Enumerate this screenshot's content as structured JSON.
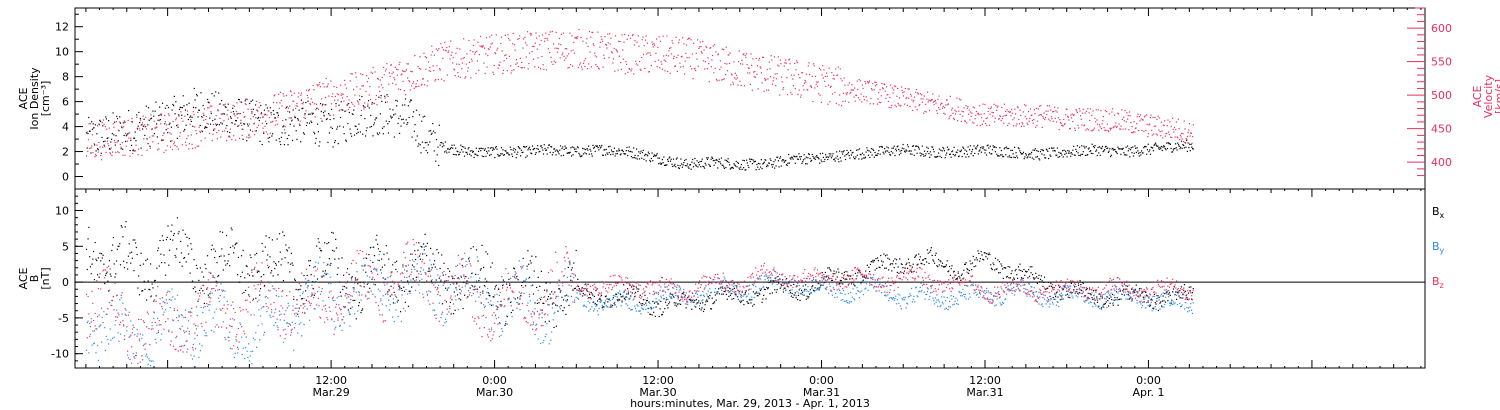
{
  "chart_data": [
    {
      "type": "scatter",
      "panel": "top",
      "ylabel_left": [
        "ACE",
        "Ion Density",
        "[cm⁻³]"
      ],
      "ylabel_right": [
        "ACE",
        "Velocity",
        "[km/s]"
      ],
      "left_ylim": [
        -1,
        13.5
      ],
      "left_yticks": [
        "0",
        "2",
        "4",
        "6",
        "8",
        "10",
        "12"
      ],
      "right_ylim": [
        360,
        630
      ],
      "right_yticks": [
        "400",
        "450",
        "500",
        "550",
        "600"
      ],
      "x_unit": "hours since Mar. 29, 2013 00:00",
      "xlim": [
        -6.8,
        92.3
      ],
      "data_end_x": 75.3,
      "series": [
        {
          "name": "Ion Density",
          "axis": "left",
          "color": "#000000",
          "points": [
            [
              -6,
              3.0
            ],
            [
              -4,
              3.5
            ],
            [
              -2,
              4.0
            ],
            [
              0,
              4.5
            ],
            [
              2,
              5.5
            ],
            [
              4,
              5.0
            ],
            [
              6,
              4.5
            ],
            [
              8,
              4.0
            ],
            [
              10,
              4.5
            ],
            [
              12,
              4.0
            ],
            [
              14,
              5.0
            ],
            [
              16,
              5.0
            ],
            [
              18,
              4.5
            ],
            [
              19,
              3.0
            ],
            [
              20,
              2.5
            ],
            [
              22,
              2.0
            ],
            [
              24,
              2.0
            ],
            [
              26,
              2.0
            ],
            [
              28,
              2.2
            ],
            [
              30,
              2.0
            ],
            [
              32,
              2.2
            ],
            [
              34,
              2.0
            ],
            [
              36,
              1.5
            ],
            [
              38,
              1.0
            ],
            [
              40,
              1.2
            ],
            [
              42,
              1.0
            ],
            [
              44,
              1.0
            ],
            [
              46,
              1.5
            ],
            [
              48,
              1.5
            ],
            [
              50,
              1.8
            ],
            [
              52,
              2.0
            ],
            [
              54,
              2.2
            ],
            [
              56,
              2.0
            ],
            [
              58,
              2.0
            ],
            [
              60,
              2.2
            ],
            [
              62,
              2.0
            ],
            [
              64,
              1.8
            ],
            [
              66,
              2.0
            ],
            [
              68,
              2.2
            ],
            [
              70,
              2.0
            ],
            [
              72,
              2.2
            ],
            [
              74,
              2.5
            ],
            [
              75,
              2.5
            ]
          ]
        },
        {
          "name": "Velocity",
          "axis": "right",
          "color": "#e8305c",
          "points": [
            [
              -6,
              430
            ],
            [
              -4,
              438
            ],
            [
              -2,
              440
            ],
            [
              0,
              445
            ],
            [
              2,
              452
            ],
            [
              4,
              460
            ],
            [
              6,
              466
            ],
            [
              8,
              475
            ],
            [
              10,
              487
            ],
            [
              12,
              500
            ],
            [
              14,
              505
            ],
            [
              16,
              520
            ],
            [
              18,
              535
            ],
            [
              20,
              550
            ],
            [
              22,
              556
            ],
            [
              24,
              562
            ],
            [
              26,
              565
            ],
            [
              28,
              568
            ],
            [
              30,
              570
            ],
            [
              32,
              565
            ],
            [
              34,
              562
            ],
            [
              36,
              560
            ],
            [
              38,
              558
            ],
            [
              40,
              548
            ],
            [
              42,
              540
            ],
            [
              44,
              532
            ],
            [
              46,
              525
            ],
            [
              48,
              518
            ],
            [
              50,
              510
            ],
            [
              52,
              504
            ],
            [
              54,
              495
            ],
            [
              56,
              488
            ],
            [
              58,
              480
            ],
            [
              60,
              470
            ],
            [
              62,
              470
            ],
            [
              64,
              470
            ],
            [
              66,
              465
            ],
            [
              68,
              465
            ],
            [
              70,
              462
            ],
            [
              72,
              455
            ],
            [
              74,
              450
            ],
            [
              75,
              445
            ]
          ]
        }
      ]
    },
    {
      "type": "scatter",
      "panel": "bottom",
      "ylabel_left": [
        "ACE",
        "B",
        "[nT]"
      ],
      "ylim": [
        -12,
        13
      ],
      "yticks": [
        "-10",
        "-5",
        "0",
        "5",
        "10"
      ],
      "x_unit": "hours since Mar. 29, 2013 00:00",
      "xlim": [
        -6.8,
        92.3
      ],
      "data_end_x": 75.3,
      "legend_placement": "right",
      "series": [
        {
          "name": "x",
          "label_base": "B",
          "color": "#000000",
          "points": [
            [
              -6,
              5
            ],
            [
              -4,
              3
            ],
            [
              -2,
              2
            ],
            [
              0,
              4
            ],
            [
              2,
              3
            ],
            [
              4,
              2
            ],
            [
              6,
              3
            ],
            [
              8,
              2
            ],
            [
              10,
              1
            ],
            [
              12,
              2
            ],
            [
              14,
              0
            ],
            [
              16,
              1
            ],
            [
              18,
              2
            ],
            [
              20,
              1
            ],
            [
              22,
              0
            ],
            [
              24,
              0
            ],
            [
              26,
              -1
            ],
            [
              28,
              -1
            ],
            [
              30,
              -1
            ],
            [
              32,
              -2
            ],
            [
              34,
              -2
            ],
            [
              36,
              -3
            ],
            [
              38,
              -3
            ],
            [
              40,
              -2
            ],
            [
              42,
              -2
            ],
            [
              44,
              -1
            ],
            [
              46,
              -1
            ],
            [
              48,
              0
            ],
            [
              50,
              1
            ],
            [
              52,
              2
            ],
            [
              54,
              3
            ],
            [
              56,
              3
            ],
            [
              58,
              2
            ],
            [
              60,
              3
            ],
            [
              62,
              2
            ],
            [
              64,
              0
            ],
            [
              66,
              -1
            ],
            [
              68,
              -2
            ],
            [
              70,
              -2
            ],
            [
              72,
              -2
            ],
            [
              74,
              -2
            ],
            [
              75,
              -2
            ]
          ]
        },
        {
          "name": "y",
          "label_base": "B",
          "color": "#2a8ae8",
          "points": [
            [
              -6,
              -5
            ],
            [
              -4,
              -7
            ],
            [
              -2,
              -8
            ],
            [
              0,
              -6
            ],
            [
              2,
              -5
            ],
            [
              4,
              -6
            ],
            [
              6,
              -7
            ],
            [
              8,
              -5
            ],
            [
              10,
              -3
            ],
            [
              12,
              -2
            ],
            [
              14,
              -1
            ],
            [
              16,
              0
            ],
            [
              18,
              -1
            ],
            [
              20,
              0
            ],
            [
              22,
              -1
            ],
            [
              24,
              -2
            ],
            [
              26,
              -3
            ],
            [
              28,
              -3
            ],
            [
              30,
              -2
            ],
            [
              32,
              -3
            ],
            [
              34,
              -3
            ],
            [
              36,
              -2
            ],
            [
              38,
              -2
            ],
            [
              40,
              -1
            ],
            [
              42,
              -1
            ],
            [
              44,
              0
            ],
            [
              46,
              0
            ],
            [
              48,
              -1
            ],
            [
              50,
              -1
            ],
            [
              52,
              -1
            ],
            [
              54,
              -2
            ],
            [
              56,
              -2
            ],
            [
              58,
              -2
            ],
            [
              60,
              -2
            ],
            [
              62,
              -1
            ],
            [
              64,
              -2
            ],
            [
              66,
              -2
            ],
            [
              68,
              -2
            ],
            [
              70,
              -2
            ],
            [
              72,
              -2
            ],
            [
              74,
              -3
            ],
            [
              75,
              -3
            ]
          ]
        },
        {
          "name": "z",
          "label_base": "B",
          "color": "#e8305c",
          "points": [
            [
              -6,
              -2
            ],
            [
              -4,
              -4
            ],
            [
              -2,
              -6
            ],
            [
              0,
              -6
            ],
            [
              2,
              -5
            ],
            [
              4,
              -4
            ],
            [
              6,
              -3
            ],
            [
              8,
              -2
            ],
            [
              10,
              -3
            ],
            [
              12,
              -2
            ],
            [
              14,
              -1
            ],
            [
              16,
              0
            ],
            [
              18,
              1
            ],
            [
              20,
              0
            ],
            [
              22,
              -2
            ],
            [
              24,
              -3
            ],
            [
              26,
              -2
            ],
            [
              28,
              -1
            ],
            [
              30,
              0
            ],
            [
              32,
              -1
            ],
            [
              34,
              0
            ],
            [
              36,
              -1
            ],
            [
              38,
              -1
            ],
            [
              40,
              0
            ],
            [
              42,
              0
            ],
            [
              44,
              1
            ],
            [
              46,
              1
            ],
            [
              48,
              0
            ],
            [
              50,
              1
            ],
            [
              52,
              0
            ],
            [
              54,
              1
            ],
            [
              56,
              0
            ],
            [
              58,
              0
            ],
            [
              60,
              -1
            ],
            [
              62,
              -1
            ],
            [
              64,
              -1
            ],
            [
              66,
              -1
            ],
            [
              68,
              -1
            ],
            [
              70,
              -1
            ],
            [
              72,
              -1
            ],
            [
              74,
              -1
            ],
            [
              75,
              -1
            ]
          ]
        }
      ]
    }
  ],
  "x_axis": {
    "ticks": [
      {
        "x": 12,
        "time": "12:00",
        "date": "Mar.29"
      },
      {
        "x": 24,
        "time": "0:00",
        "date": "Mar.30"
      },
      {
        "x": 36,
        "time": "12:00",
        "date": "Mar.30"
      },
      {
        "x": 48,
        "time": "0:00",
        "date": "Mar.31"
      },
      {
        "x": 60,
        "time": "12:00",
        "date": "Mar.31"
      },
      {
        "x": 72,
        "time": "0:00",
        "date": "Apr. 1"
      }
    ],
    "xlabel": "hours:minutes, Mar. 29, 2013 - Apr.  1, 2013"
  }
}
